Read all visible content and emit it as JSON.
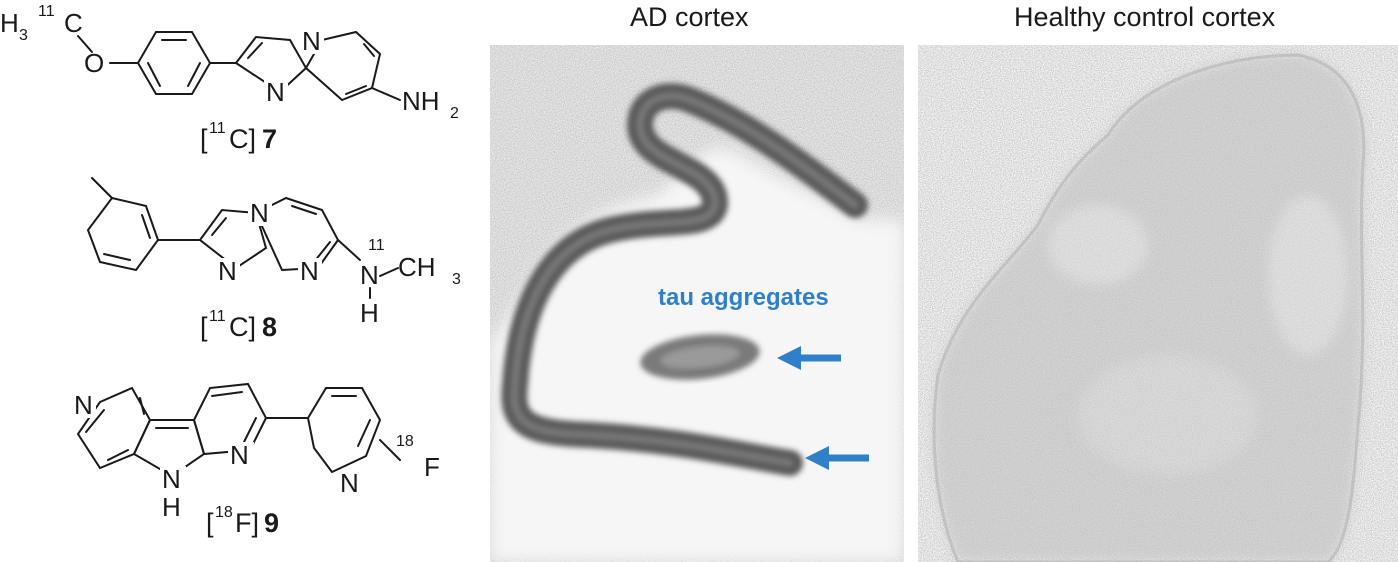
{
  "compounds": [
    {
      "id": "compound-7",
      "label_prefix": "[",
      "isotope": "11",
      "label_element": "C]",
      "label_number": "7",
      "atoms": {
        "methyl": "H",
        "methyl_sub": "3",
        "methyl_iso": "11",
        "methyl_el": "C",
        "oxygen": "O",
        "ring_n1": "N",
        "ring_n2": "N",
        "amine": "NH",
        "amine_sub": "2"
      }
    },
    {
      "id": "compound-8",
      "label_prefix": "[",
      "isotope": "11",
      "label_element": "C]",
      "label_number": "8",
      "atoms": {
        "ring_n1": "N",
        "ring_n2": "N",
        "ring_n3": "N",
        "amine_n": "N",
        "amine_h": "H",
        "amine_iso": "11",
        "methyl": "CH",
        "methyl_sub": "3"
      }
    },
    {
      "id": "compound-9",
      "label_prefix": "[",
      "isotope": "18",
      "label_element": "F]",
      "label_number": "9",
      "atoms": {
        "pyr_n": "N",
        "nh_n": "N",
        "nh_h": "H",
        "ring_n": "N",
        "py_n": "N",
        "f_iso": "18",
        "f": "F"
      }
    }
  ],
  "panels": {
    "ad": {
      "title": "AD cortex"
    },
    "control": {
      "title": "Healthy control cortex"
    }
  },
  "annotation": {
    "label": "tau aggregates",
    "color": "#2f80c9",
    "arrow_count": 2
  }
}
